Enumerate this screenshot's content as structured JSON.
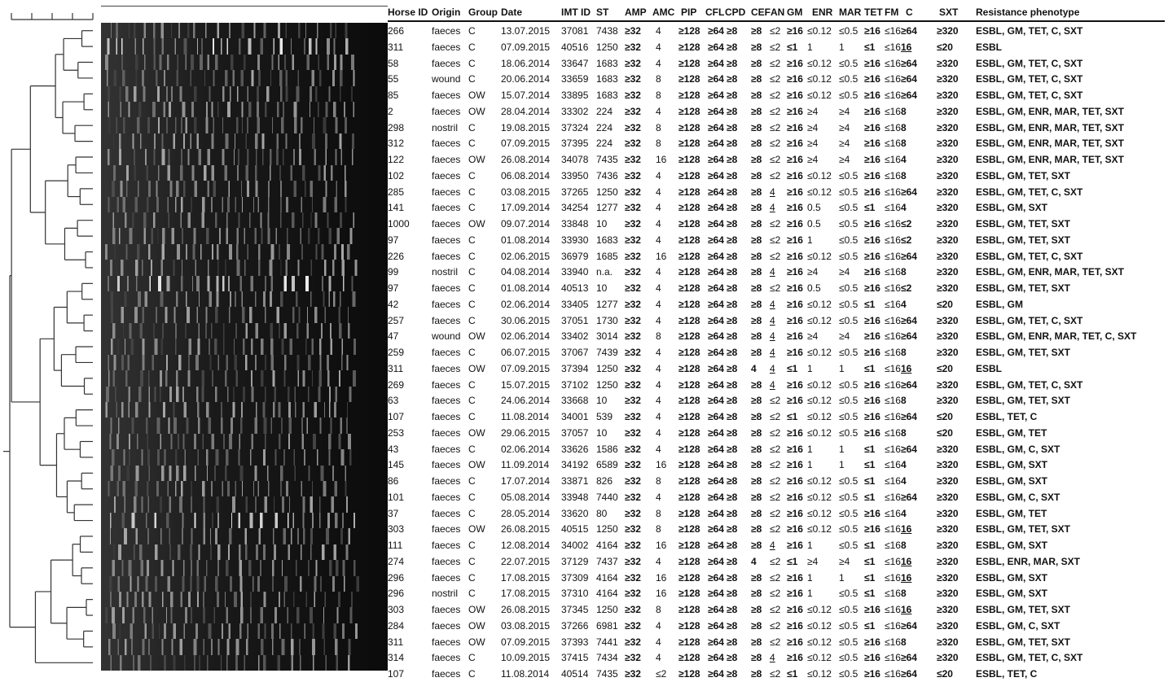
{
  "columns": [
    {
      "key": "horse",
      "label": "Horse ID"
    },
    {
      "key": "origin",
      "label": "Origin"
    },
    {
      "key": "group",
      "label": "Group"
    },
    {
      "key": "date",
      "label": "Date"
    },
    {
      "key": "imt",
      "label": "IMT ID"
    },
    {
      "key": "st",
      "label": "ST"
    },
    {
      "key": "amp",
      "label": "AMP"
    },
    {
      "key": "amc",
      "label": "AMC"
    },
    {
      "key": "pip",
      "label": "PIP"
    },
    {
      "key": "cfl",
      "label": "CFL"
    },
    {
      "key": "cpd",
      "label": "CPD"
    },
    {
      "key": "cef",
      "label": "CEF"
    },
    {
      "key": "an",
      "label": "AN"
    },
    {
      "key": "gm",
      "label": "GM"
    },
    {
      "key": "enr",
      "label": "ENR"
    },
    {
      "key": "mar",
      "label": "MAR"
    },
    {
      "key": "tet",
      "label": "TET"
    },
    {
      "key": "fm",
      "label": "FM"
    },
    {
      "key": "c",
      "label": "C"
    },
    {
      "key": "sxt",
      "label": "SXT"
    },
    {
      "key": "phen",
      "label": "Resistance phenotype"
    }
  ],
  "rows": [
    {
      "horse": "266",
      "origin": "faeces",
      "group": "C",
      "date": "13.07.2015",
      "imt": "37081",
      "st": "7438",
      "amp": "≥32",
      "amc": "4",
      "pip": "≥128",
      "cfl": "≥64",
      "cpd": "≥8",
      "cef": "≥8",
      "an": "≤2",
      "gm": "≥16",
      "enr": "≤0.12",
      "mar": "≤0.5",
      "tet": "≥16",
      "fm": "≤16",
      "c": "≥64",
      "sxt": "≥320",
      "phen": "ESBL, GM, TET, C, SXT"
    },
    {
      "horse": "311",
      "origin": "faeces",
      "group": "C",
      "date": "07.09.2015",
      "imt": "40516",
      "st": "1250",
      "amp": "≥32",
      "amc": "4",
      "pip": "≥128",
      "cfl": "≥64",
      "cpd": "≥8",
      "cef": "≥8",
      "an": "≤2",
      "gm": "≤1",
      "enr": "1",
      "mar": "1",
      "tet": "≤1",
      "fm": "≤16",
      "c": "16",
      "sxt": "≤20",
      "phen": "ESBL"
    },
    {
      "horse": "58",
      "origin": "faeces",
      "group": "C",
      "date": "18.06.2014",
      "imt": "33647",
      "st": "1683",
      "amp": "≥32",
      "amc": "4",
      "pip": "≥128",
      "cfl": "≥64",
      "cpd": "≥8",
      "cef": "≥8",
      "an": "≤2",
      "gm": "≥16",
      "enr": "≤0.12",
      "mar": "≤0.5",
      "tet": "≥16",
      "fm": "≤16",
      "c": "≥64",
      "sxt": "≥320",
      "phen": "ESBL, GM, TET, C, SXT"
    },
    {
      "horse": "55",
      "origin": "wound",
      "group": "C",
      "date": "20.06.2014",
      "imt": "33659",
      "st": "1683",
      "amp": "≥32",
      "amc": "8",
      "pip": "≥128",
      "cfl": "≥64",
      "cpd": "≥8",
      "cef": "≥8",
      "an": "≤2",
      "gm": "≥16",
      "enr": "≤0.12",
      "mar": "≤0.5",
      "tet": "≥16",
      "fm": "≤16",
      "c": "≥64",
      "sxt": "≥320",
      "phen": "ESBL, GM, TET, C, SXT"
    },
    {
      "horse": "85",
      "origin": "faeces",
      "group": "OW",
      "date": "15.07.2014",
      "imt": "33895",
      "st": "1683",
      "amp": "≥32",
      "amc": "8",
      "pip": "≥128",
      "cfl": "≥64",
      "cpd": "≥8",
      "cef": "≥8",
      "an": "≤2",
      "gm": "≥16",
      "enr": "≤0.12",
      "mar": "≤0.5",
      "tet": "≥16",
      "fm": "≤16",
      "c": "≥64",
      "sxt": "≥320",
      "phen": "ESBL, GM, TET, C, SXT"
    },
    {
      "horse": "2",
      "origin": "faeces",
      "group": "OW",
      "date": "28.04.2014",
      "imt": "33302",
      "st": "224",
      "amp": "≥32",
      "amc": "4",
      "pip": "≥128",
      "cfl": "≥64",
      "cpd": "≥8",
      "cef": "≥8",
      "an": "≤2",
      "gm": "≥16",
      "enr": "≥4",
      "mar": "≥4",
      "tet": "≥16",
      "fm": "≤16",
      "c": "8",
      "sxt": "≥320",
      "phen": "ESBL, GM, ENR, MAR, TET, SXT"
    },
    {
      "horse": "298",
      "origin": "nostril",
      "group": "C",
      "date": "19.08.2015",
      "imt": "37324",
      "st": "224",
      "amp": "≥32",
      "amc": "8",
      "pip": "≥128",
      "cfl": "≥64",
      "cpd": "≥8",
      "cef": "≥8",
      "an": "≤2",
      "gm": "≥16",
      "enr": "≥4",
      "mar": "≥4",
      "tet": "≥16",
      "fm": "≤16",
      "c": "8",
      "sxt": "≥320",
      "phen": "ESBL, GM, ENR, MAR, TET, SXT"
    },
    {
      "horse": "312",
      "origin": "faeces",
      "group": "C",
      "date": "07.09.2015",
      "imt": "37395",
      "st": "224",
      "amp": "≥32",
      "amc": "8",
      "pip": "≥128",
      "cfl": "≥64",
      "cpd": "≥8",
      "cef": "≥8",
      "an": "≤2",
      "gm": "≥16",
      "enr": "≥4",
      "mar": "≥4",
      "tet": "≥16",
      "fm": "≤16",
      "c": "8",
      "sxt": "≥320",
      "phen": "ESBL, GM, ENR, MAR, TET, SXT"
    },
    {
      "horse": "122",
      "origin": "faeces",
      "group": "OW",
      "date": "26.08.2014",
      "imt": "34078",
      "st": "7435",
      "amp": "≥32",
      "amc": "16",
      "pip": "≥128",
      "cfl": "≥64",
      "cpd": "≥8",
      "cef": "≥8",
      "an": "≤2",
      "gm": "≥16",
      "enr": "≥4",
      "mar": "≥4",
      "tet": "≥16",
      "fm": "≤16",
      "c": "4",
      "sxt": "≥320",
      "phen": "ESBL, GM, ENR, MAR, TET, SXT"
    },
    {
      "horse": "102",
      "origin": "faeces",
      "group": "C",
      "date": "06.08.2014",
      "imt": "33950",
      "st": "7436",
      "amp": "≥32",
      "amc": "4",
      "pip": "≥128",
      "cfl": "≥64",
      "cpd": "≥8",
      "cef": "≥8",
      "an": "≤2",
      "gm": "≥16",
      "enr": "≤0.12",
      "mar": "≤0.5",
      "tet": "≥16",
      "fm": "≤16",
      "c": "8",
      "sxt": "≥320",
      "phen": "ESBL, GM, TET,  SXT"
    },
    {
      "horse": "285",
      "origin": "faeces",
      "group": "C",
      "date": "03.08.2015",
      "imt": "37265",
      "st": "1250",
      "amp": "≥32",
      "amc": "4",
      "pip": "≥128",
      "cfl": "≥64",
      "cpd": "≥8",
      "cef": "≥8",
      "an": "4",
      "gm": "≥16",
      "enr": "≤0.12",
      "mar": "≤0.5",
      "tet": "≥16",
      "fm": "≤16",
      "c": "≥64",
      "sxt": "≥320",
      "phen": "ESBL, GM, TET, C, SXT"
    },
    {
      "horse": "141",
      "origin": "faeces",
      "group": "C",
      "date": "17.09.2014",
      "imt": "34254",
      "st": "1277",
      "amp": "≥32",
      "amc": "4",
      "pip": "≥128",
      "cfl": "≥64",
      "cpd": "≥8",
      "cef": "≥8",
      "an": "4",
      "gm": "≥16",
      "enr": "0.5",
      "mar": "≤0.5",
      "tet": "≤1",
      "fm": "≤16",
      "c": "4",
      "sxt": "≥320",
      "phen": "ESBL, GM, SXT"
    },
    {
      "horse": "1000",
      "origin": "faeces",
      "group": "OW",
      "date": "09.07.2014",
      "imt": "33848",
      "st": "10",
      "amp": "≥32",
      "amc": "4",
      "pip": "≥128",
      "cfl": "≥64",
      "cpd": "≥8",
      "cef": "≥8",
      "an": "≤2",
      "gm": "≥16",
      "enr": "0.5",
      "mar": "≤0.5",
      "tet": "≥16",
      "fm": "≤16",
      "c": "≤2",
      "sxt": "≥320",
      "phen": "ESBL, GM, TET,  SXT"
    },
    {
      "horse": "97",
      "origin": "faeces",
      "group": "C",
      "date": "01.08.2014",
      "imt": "33930",
      "st": "1683",
      "amp": "≥32",
      "amc": "4",
      "pip": "≥128",
      "cfl": "≥64",
      "cpd": "≥8",
      "cef": "≥8",
      "an": "≤2",
      "gm": "≥16",
      "enr": "1",
      "mar": "≤0.5",
      "tet": "≥16",
      "fm": "≤16",
      "c": "≤2",
      "sxt": "≥320",
      "phen": "ESBL, GM, TET,  SXT"
    },
    {
      "horse": "226",
      "origin": "faeces",
      "group": "C",
      "date": "02.06.2015",
      "imt": "36979",
      "st": "1685",
      "amp": "≥32",
      "amc": "16",
      "pip": "≥128",
      "cfl": "≥64",
      "cpd": "≥8",
      "cef": "≥8",
      "an": "≤2",
      "gm": "≥16",
      "enr": "≤0.12",
      "mar": "≤0.5",
      "tet": "≥16",
      "fm": "≤16",
      "c": "≥64",
      "sxt": "≥320",
      "phen": "ESBL, GM, TET, C, SXT"
    },
    {
      "horse": "99",
      "origin": "nostril",
      "group": "C",
      "date": "04.08.2014",
      "imt": "33940",
      "st": "n.a.",
      "amp": "≥32",
      "amc": "4",
      "pip": "≥128",
      "cfl": "≥64",
      "cpd": "≥8",
      "cef": "≥8",
      "an": "4",
      "gm": "≥16",
      "enr": "≥4",
      "mar": "≥4",
      "tet": "≥16",
      "fm": "≤16",
      "c": "8",
      "sxt": "≥320",
      "phen": "ESBL, GM, ENR, MAR, TET, SXT"
    },
    {
      "horse": "97",
      "origin": "faeces",
      "group": "C",
      "date": "01.08.2014",
      "imt": "40513",
      "st": "10",
      "amp": "≥32",
      "amc": "4",
      "pip": "≥128",
      "cfl": "≥64",
      "cpd": "≥8",
      "cef": "≥8",
      "an": "≤2",
      "gm": "≥16",
      "enr": "0.5",
      "mar": "≤0.5",
      "tet": "≥16",
      "fm": "≤16",
      "c": "≤2",
      "sxt": "≥320",
      "phen": "ESBL, GM, TET,  SXT"
    },
    {
      "horse": "42",
      "origin": "faeces",
      "group": "C",
      "date": "02.06.2014",
      "imt": "33405",
      "st": "1277",
      "amp": "≥32",
      "amc": "4",
      "pip": "≥128",
      "cfl": "≥64",
      "cpd": "≥8",
      "cef": "≥8",
      "an": "4",
      "gm": "≥16",
      "enr": "≤0.12",
      "mar": "≤0.5",
      "tet": "≤1",
      "fm": "≤16",
      "c": "4",
      "sxt": "≤20",
      "phen": "ESBL, GM"
    },
    {
      "horse": "257",
      "origin": "faeces",
      "group": "C",
      "date": "30.06.2015",
      "imt": "37051",
      "st": "1730",
      "amp": "≥32",
      "amc": "4",
      "pip": "≥128",
      "cfl": "≥64",
      "cpd": "≥8",
      "cef": "≥8",
      "an": "4",
      "gm": "≥16",
      "enr": "≤0.12",
      "mar": "≤0.5",
      "tet": "≥16",
      "fm": "≤16",
      "c": "≥64",
      "sxt": "≥320",
      "phen": "ESBL, GM, TET, C, SXT"
    },
    {
      "horse": "47",
      "origin": "wound",
      "group": "OW",
      "date": "02.06.2014",
      "imt": "33402",
      "st": "3014",
      "amp": "≥32",
      "amc": "8",
      "pip": "≥128",
      "cfl": "≥64",
      "cpd": "≥8",
      "cef": "≥8",
      "an": "4",
      "gm": "≥16",
      "enr": "≥4",
      "mar": "≥4",
      "tet": "≥16",
      "fm": "≤16",
      "c": "≥64",
      "sxt": "≥320",
      "phen": "ESBL, GM, ENR, MAR, TET, C, SXT"
    },
    {
      "horse": "259",
      "origin": "faeces",
      "group": "C",
      "date": "06.07.2015",
      "imt": "37067",
      "st": "7439",
      "amp": "≥32",
      "amc": "4",
      "pip": "≥128",
      "cfl": "≥64",
      "cpd": "≥8",
      "cef": "≥8",
      "an": "4",
      "gm": "≥16",
      "enr": "≤0.12",
      "mar": "≤0.5",
      "tet": "≥16",
      "fm": "≤16",
      "c": "8",
      "sxt": "≥320",
      "phen": "ESBL, GM, TET,  SXT"
    },
    {
      "horse": "311",
      "origin": "faeces",
      "group": "OW",
      "date": "07.09.2015",
      "imt": "37394",
      "st": "1250",
      "amp": "≥32",
      "amc": "4",
      "pip": "≥128",
      "cfl": "≥64",
      "cpd": "≥8",
      "cef": "4",
      "an": "4",
      "gm": "≤1",
      "enr": "1",
      "mar": "1",
      "tet": "≤1",
      "fm": "≤16",
      "c": "16",
      "sxt": "≤20",
      "phen": "ESBL"
    },
    {
      "horse": "269",
      "origin": "faeces",
      "group": "C",
      "date": "15.07.2015",
      "imt": "37102",
      "st": "1250",
      "amp": "≥32",
      "amc": "4",
      "pip": "≥128",
      "cfl": "≥64",
      "cpd": "≥8",
      "cef": "≥8",
      "an": "4",
      "gm": "≥16",
      "enr": "≤0.12",
      "mar": "≤0.5",
      "tet": "≥16",
      "fm": "≤16",
      "c": "≥64",
      "sxt": "≥320",
      "phen": "ESBL, GM, TET, C, SXT"
    },
    {
      "horse": "63",
      "origin": "faeces",
      "group": "C",
      "date": "24.06.2014",
      "imt": "33668",
      "st": "10",
      "amp": "≥32",
      "amc": "4",
      "pip": "≥128",
      "cfl": "≥64",
      "cpd": "≥8",
      "cef": "≥8",
      "an": "≤2",
      "gm": "≥16",
      "enr": "≤0.12",
      "mar": "≤0.5",
      "tet": "≥16",
      "fm": "≤16",
      "c": "8",
      "sxt": "≥320",
      "phen": "ESBL, GM, TET,  SXT"
    },
    {
      "horse": "107",
      "origin": "faeces",
      "group": "C",
      "date": "11.08.2014",
      "imt": "34001",
      "st": "539",
      "amp": "≥32",
      "amc": "4",
      "pip": "≥128",
      "cfl": "≥64",
      "cpd": "≥8",
      "cef": "≥8",
      "an": "≤2",
      "gm": "≤1",
      "enr": "≤0.12",
      "mar": "≤0.5",
      "tet": "≥16",
      "fm": "≤16",
      "c": "≥64",
      "sxt": "≤20",
      "phen": "ESBL, TET, C"
    },
    {
      "horse": "253",
      "origin": "faeces",
      "group": "OW",
      "date": "29.06.2015",
      "imt": "37057",
      "st": "10",
      "amp": "≥32",
      "amc": "4",
      "pip": "≥128",
      "cfl": "≥64",
      "cpd": "≥8",
      "cef": "≥8",
      "an": "≤2",
      "gm": "≥16",
      "enr": "≤0.12",
      "mar": "≤0.5",
      "tet": "≥16",
      "fm": "≤16",
      "c": "8",
      "sxt": "≤20",
      "phen": "ESBL, GM, TET"
    },
    {
      "horse": "43",
      "origin": "faeces",
      "group": "C",
      "date": "02.06.2014",
      "imt": "33626",
      "st": "1586",
      "amp": "≥32",
      "amc": "4",
      "pip": "≥128",
      "cfl": "≥64",
      "cpd": "≥8",
      "cef": "≥8",
      "an": "≤2",
      "gm": "≥16",
      "enr": "1",
      "mar": "1",
      "tet": "≤1",
      "fm": "≤16",
      "c": "≥64",
      "sxt": "≥320",
      "phen": "ESBL, GM, C, SXT"
    },
    {
      "horse": "145",
      "origin": "faeces",
      "group": "OW",
      "date": "11.09.2014",
      "imt": "34192",
      "st": "6589",
      "amp": "≥32",
      "amc": "16",
      "pip": "≥128",
      "cfl": "≥64",
      "cpd": "≥8",
      "cef": "≥8",
      "an": "≤2",
      "gm": "≥16",
      "enr": "1",
      "mar": "1",
      "tet": "≤1",
      "fm": "≤16",
      "c": "4",
      "sxt": "≥320",
      "phen": "ESBL, GM, SXT"
    },
    {
      "horse": "86",
      "origin": "faeces",
      "group": "C",
      "date": "17.07.2014",
      "imt": "33871",
      "st": "826",
      "amp": "≥32",
      "amc": "8",
      "pip": "≥128",
      "cfl": "≥64",
      "cpd": "≥8",
      "cef": "≥8",
      "an": "≤2",
      "gm": "≥16",
      "enr": "≤0.12",
      "mar": "≤0.5",
      "tet": "≤1",
      "fm": "≤16",
      "c": "4",
      "sxt": "≥320",
      "phen": "ESBL, GM, SXT"
    },
    {
      "horse": "101",
      "origin": "faeces",
      "group": "C",
      "date": "05.08.2014",
      "imt": "33948",
      "st": "7440",
      "amp": "≥32",
      "amc": "4",
      "pip": "≥128",
      "cfl": "≥64",
      "cpd": "≥8",
      "cef": "≥8",
      "an": "≤2",
      "gm": "≥16",
      "enr": "≤0.12",
      "mar": "≤0.5",
      "tet": "≤1",
      "fm": "≤16",
      "c": "≥64",
      "sxt": "≥320",
      "phen": "ESBL, GM, C, SXT"
    },
    {
      "horse": "37",
      "origin": "faeces",
      "group": "C",
      "date": "28.05.2014",
      "imt": "33620",
      "st": "80",
      "amp": "≥32",
      "amc": "8",
      "pip": "≥128",
      "cfl": "≥64",
      "cpd": "≥8",
      "cef": "≥8",
      "an": "≤2",
      "gm": "≥16",
      "enr": "≤0.12",
      "mar": "≤0.5",
      "tet": "≥16",
      "fm": "≤16",
      "c": "4",
      "sxt": "≥320",
      "phen": "ESBL, GM, TET"
    },
    {
      "horse": "303",
      "origin": "faeces",
      "group": "OW",
      "date": "26.08.2015",
      "imt": "40515",
      "st": "1250",
      "amp": "≥32",
      "amc": "8",
      "pip": "≥128",
      "cfl": "≥64",
      "cpd": "≥8",
      "cef": "≥8",
      "an": "≤2",
      "gm": "≥16",
      "enr": "≤0.12",
      "mar": "≤0.5",
      "tet": "≥16",
      "fm": "≤16",
      "c": "16",
      "sxt": "≥320",
      "phen": "ESBL, GM, TET,  SXT"
    },
    {
      "horse": "111",
      "origin": "faeces",
      "group": "C",
      "date": "12.08.2014",
      "imt": "34002",
      "st": "4164",
      "amp": "≥32",
      "amc": "16",
      "pip": "≥128",
      "cfl": "≥64",
      "cpd": "≥8",
      "cef": "≥8",
      "an": "4",
      "gm": "≥16",
      "enr": "1",
      "mar": "≤0.5",
      "tet": "≤1",
      "fm": "≤16",
      "c": "8",
      "sxt": "≥320",
      "phen": "ESBL, GM, SXT"
    },
    {
      "horse": "274",
      "origin": "faeces",
      "group": "C",
      "date": "22.07.2015",
      "imt": "37129",
      "st": "7437",
      "amp": "≥32",
      "amc": "4",
      "pip": "≥128",
      "cfl": "≥64",
      "cpd": "≥8",
      "cef": "4",
      "an": "≤2",
      "gm": "≤1",
      "enr": "≥4",
      "mar": "≥4",
      "tet": "≤1",
      "fm": "≤16",
      "c": "16",
      "sxt": "≥320",
      "phen": "ESBL, ENR, MAR, SXT"
    },
    {
      "horse": "296",
      "origin": "faeces",
      "group": "C",
      "date": "17.08.2015",
      "imt": "37309",
      "st": "4164",
      "amp": "≥32",
      "amc": "16",
      "pip": "≥128",
      "cfl": "≥64",
      "cpd": "≥8",
      "cef": "≥8",
      "an": "≤2",
      "gm": "≥16",
      "enr": "1",
      "mar": "1",
      "tet": "≤1",
      "fm": "≤16",
      "c": "16",
      "sxt": "≥320",
      "phen": "ESBL, GM, SXT"
    },
    {
      "horse": "296",
      "origin": "nostril",
      "group": "C",
      "date": "17.08.2015",
      "imt": "37310",
      "st": "4164",
      "amp": "≥32",
      "amc": "16",
      "pip": "≥128",
      "cfl": "≥64",
      "cpd": "≥8",
      "cef": "≥8",
      "an": "≤2",
      "gm": "≥16",
      "enr": "1",
      "mar": "≤0.5",
      "tet": "≤1",
      "fm": "≤16",
      "c": "8",
      "sxt": "≥320",
      "phen": "ESBL, GM, SXT"
    },
    {
      "horse": "303",
      "origin": "faeces",
      "group": "OW",
      "date": "26.08.2015",
      "imt": "37345",
      "st": "1250",
      "amp": "≥32",
      "amc": "8",
      "pip": "≥128",
      "cfl": "≥64",
      "cpd": "≥8",
      "cef": "≥8",
      "an": "≤2",
      "gm": "≥16",
      "enr": "≤0.12",
      "mar": "≤0.5",
      "tet": "≥16",
      "fm": "≤16",
      "c": "16",
      "sxt": "≥320",
      "phen": "ESBL, GM, TET,  SXT"
    },
    {
      "horse": "284",
      "origin": "faeces",
      "group": "OW",
      "date": "03.08.2015",
      "imt": "37266",
      "st": "6981",
      "amp": "≥32",
      "amc": "4",
      "pip": "≥128",
      "cfl": "≥64",
      "cpd": "≥8",
      "cef": "≥8",
      "an": "≤2",
      "gm": "≥16",
      "enr": "≤0.12",
      "mar": "≤0.5",
      "tet": "≤1",
      "fm": "≤16",
      "c": "≥64",
      "sxt": "≥320",
      "phen": "ESBL, GM, C, SXT"
    },
    {
      "horse": "311",
      "origin": "faeces",
      "group": "OW",
      "date": "07.09.2015",
      "imt": "37393",
      "st": "7441",
      "amp": "≥32",
      "amc": "4",
      "pip": "≥128",
      "cfl": "≥64",
      "cpd": "≥8",
      "cef": "≥8",
      "an": "≤2",
      "gm": "≥16",
      "enr": "≤0.12",
      "mar": "≤0.5",
      "tet": "≥16",
      "fm": "≤16",
      "c": "8",
      "sxt": "≥320",
      "phen": "ESBL, GM, TET,  SXT"
    },
    {
      "horse": "314",
      "origin": "faeces",
      "group": "C",
      "date": "10.09.2015",
      "imt": "37415",
      "st": "7434",
      "amp": "≥32",
      "amc": "4",
      "pip": "≥128",
      "cfl": "≥64",
      "cpd": "≥8",
      "cef": "≥8",
      "an": "4",
      "gm": "≥16",
      "enr": "≤0.12",
      "mar": "≤0.5",
      "tet": "≥16",
      "fm": "≤16",
      "c": "≥64",
      "sxt": "≥320",
      "phen": "ESBL, GM, TET, C, SXT"
    },
    {
      "horse": "107",
      "origin": "faeces",
      "group": "C",
      "date": "11.08.2014",
      "imt": "40514",
      "st": "7435",
      "amp": "≥32",
      "amc": "≤2",
      "pip": "≥128",
      "cfl": "≥64",
      "cpd": "≥8",
      "cef": "≥8",
      "an": "≤2",
      "gm": "≤1",
      "enr": "≤0.12",
      "mar": "≤0.5",
      "tet": "≥16",
      "fm": "≤16",
      "c": "≥64",
      "sxt": "≤20",
      "phen": "ESBL,  TET, C"
    }
  ]
}
